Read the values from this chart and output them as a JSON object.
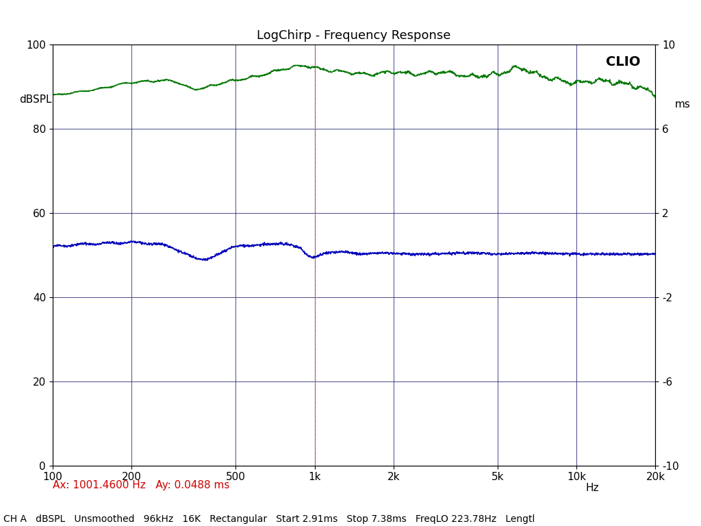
{
  "title": "LogChirp - Frequency Response",
  "ylabel_left": "dBSPL",
  "ylabel_right": "ms",
  "xlabel_label": "Hz",
  "ylim_left": [
    0,
    100
  ],
  "ylim_right": [
    -10,
    10
  ],
  "xlim": [
    100,
    20000
  ],
  "xtick_positions": [
    100,
    200,
    500,
    1000,
    2000,
    5000,
    10000,
    20000
  ],
  "xtick_labels": [
    "100",
    "200",
    "500",
    "1k",
    "2k",
    "5k",
    "10k",
    "20k"
  ],
  "ytick_left": [
    0,
    20,
    40,
    60,
    80,
    100
  ],
  "ytick_right": [
    -10,
    -6,
    -2,
    2,
    6,
    10
  ],
  "clio_text": "CLIO",
  "vline_freq": 1001.46,
  "vline_color": "#e06060",
  "green_color": "#007700",
  "blue_color": "#0000bb",
  "background_color": "#ffffff",
  "grid_color": "#2c2c7a",
  "annotation_text": "Ax: 1001.4600 Hz   Ay: 0.0488 ms",
  "annotation_color": "#cc0000",
  "status_text": "CH A   dBSPL   Unsmoothed   96kHz   16K   Rectangular   Start 2.91ms   Stop 7.38ms   FreqLO 223.78Hz   Lengtl",
  "title_fontsize": 13,
  "axis_fontsize": 11,
  "tick_fontsize": 11,
  "small_fontsize": 10,
  "clio_fontsize": 14
}
